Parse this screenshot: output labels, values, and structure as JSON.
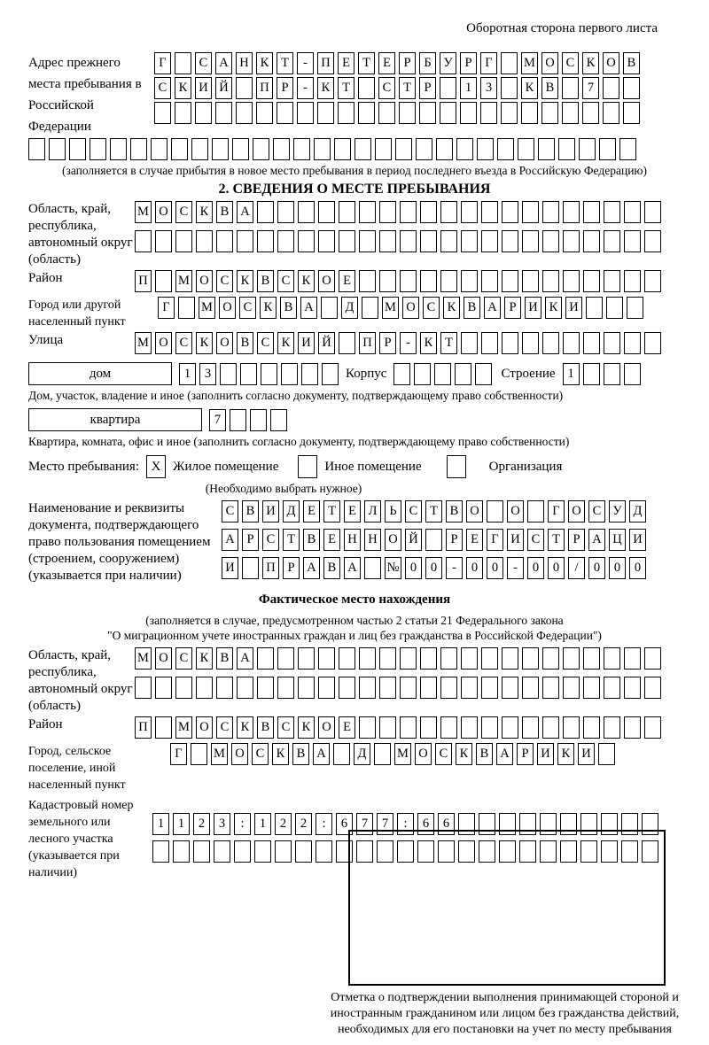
{
  "page": {
    "side_note": "Оборотная сторона первого листа"
  },
  "prev_stay": {
    "label": "Адрес прежнего места пребывания в Российской Федерации",
    "row1": {
      "cells": "Г САНКТ-ПЕТЕРБУРГ МОСКОВ",
      "len": 24
    },
    "row2": {
      "cells": "СКИЙ ПР-КТ СТР 13 КВ 7",
      "len": 24
    },
    "row3": {
      "cells": "",
      "len": 24
    },
    "row4": {
      "cells": "",
      "len": 30
    },
    "note": "(заполняется в случае прибытия в новое место пребывания в период последнего въезда в Российскую Федерацию)"
  },
  "section2": {
    "title": "2. СВЕДЕНИЯ О МЕСТЕ ПРЕБЫВАНИЯ",
    "region": {
      "label": "Область, край, республика, автономный округ (область)",
      "row1": {
        "cells": "МОСКВА",
        "len": 26
      },
      "row2": {
        "cells": "",
        "len": 26
      }
    },
    "district": {
      "label": "Район",
      "row": {
        "cells": "П МОСКВСКОЕ",
        "len": 26
      }
    },
    "city": {
      "label": "Город или другой населенный пункт",
      "row": {
        "cells": "Г МОСКВА Д МОСКВАРИКИ",
        "len": 24
      }
    },
    "street": {
      "label": "Улица",
      "row": {
        "cells": "МОСКОВСКИЙ ПР-КТ",
        "len": 26
      }
    },
    "house": {
      "label": "дом",
      "row": {
        "cells": "13",
        "len": 8
      },
      "korpus_label": "Корпус",
      "korpus": {
        "cells": "",
        "len": 5
      },
      "stroenie_label": "Строение",
      "stroenie": {
        "cells": "1",
        "len": 4
      },
      "note": "Дом, участок, владение и иное (заполнить согласно документу, подтверждающему право собственности)"
    },
    "apartment": {
      "label": "квартира",
      "row": {
        "cells": "7",
        "len": 4
      },
      "note": "Квартира, комната, офис и иное (заполнить согласно документу, подтверждающему право собственности)"
    },
    "stay_type": {
      "label": "Место пребывания:",
      "mark": "X",
      "options": [
        {
          "label": "Жилое помещение",
          "checked": true
        },
        {
          "label": "Иное помещение",
          "checked": false
        },
        {
          "label": "Организация",
          "checked": false
        }
      ],
      "note": "(Необходимо выбрать нужное)"
    },
    "document": {
      "label": "Наименование и реквизиты документа, подтверждающего право пользования помещением (строением, сооружением) (указывается при наличии)",
      "row1": {
        "cells": "СВИДЕТЕЛЬСТВО О ГОСУД",
        "len": 21
      },
      "row2": {
        "cells": "АРСТВЕННОЙ РЕГИСТРАЦИ",
        "len": 21
      },
      "row3": {
        "cells": "И ПРАВА №00-00-00/000",
        "len": 21
      }
    }
  },
  "actual_location": {
    "title": "Фактическое место нахождения",
    "note1": "(заполняется в случае, предусмотренном частью 2 статьи 21 Федерального закона",
    "note2": "\"О миграционном учете иностранных граждан и лиц без гражданства в Российской Федерации\")",
    "region": {
      "label": "Область, край, республика, автономный округ (область)",
      "row1": {
        "cells": "МОСКВА",
        "len": 26
      },
      "row2": {
        "cells": "",
        "len": 26
      }
    },
    "district": {
      "label": "Район",
      "row": {
        "cells": "П МОСКВСКОЕ",
        "len": 26
      }
    },
    "city": {
      "label": "Город, сельское поселение, иной населенный пункт",
      "row": {
        "cells": "Г МОСКВА Д МОСКВАРИКИ",
        "len": 22
      }
    },
    "cadastre": {
      "label": "Кадастровый номер земельного или лесного участка (указывается при наличии)",
      "row1": {
        "cells": "1123:122:677:66",
        "len": 25
      },
      "row2": {
        "cells": "",
        "len": 25
      }
    },
    "stamp_note": "Отметка о подтверждении выполнения принимающей стороной и иностранным гражданином или лицом без гражданства действий, необходимых для его постановки на учет по месту пребывания"
  }
}
